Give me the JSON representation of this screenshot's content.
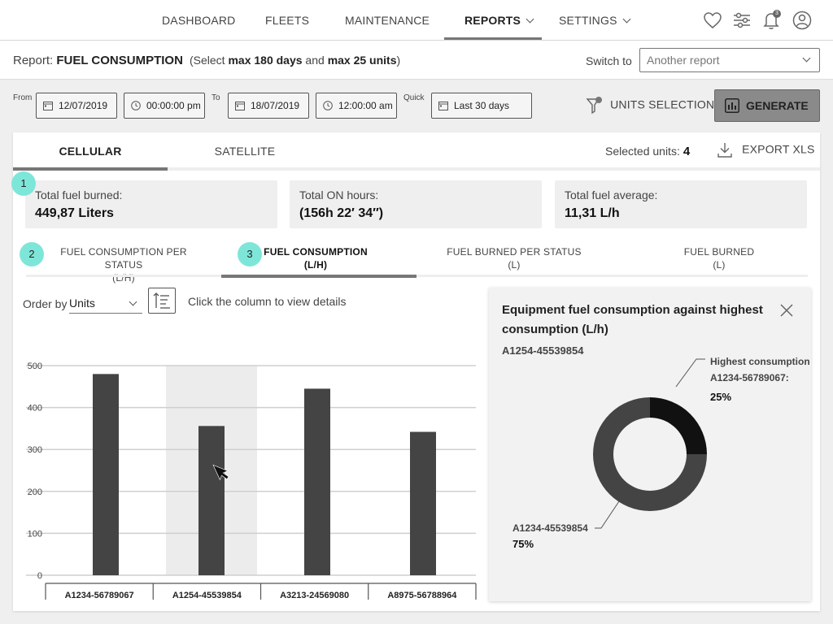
{
  "nav": {
    "items": [
      {
        "label": "DASHBOARD"
      },
      {
        "label": "FLEETS"
      },
      {
        "label": "MAINTENANCE"
      },
      {
        "label": "REPORTS"
      },
      {
        "label": "SETTINGS"
      }
    ],
    "active": "REPORTS",
    "notification_count": "3"
  },
  "report": {
    "prefix": "Report:",
    "name": "FUEL CONSUMPTION",
    "hint_open": "(Select ",
    "hint_days": "max 180 days",
    "hint_and": " and ",
    "hint_units": "max 25 units",
    "hint_close": ")",
    "switch_label": "Switch to",
    "switch_value": "Another report"
  },
  "filters": {
    "from_label": "From",
    "from_date": "12/07/2019",
    "from_time": "00:00:00 pm",
    "to_label": "To",
    "to_date": "18/07/2019",
    "to_time": "12:00:00 am",
    "quick_label": "Quick",
    "quick_value": "Last 30 days",
    "units_selection": "UNITS SELECTION",
    "generate": "GENERATE"
  },
  "tabs": {
    "items": [
      {
        "label": "CELLULAR"
      },
      {
        "label": "SATELLITE"
      }
    ],
    "active": "CELLULAR",
    "selected_units_label": "Selected units:",
    "selected_units_value": "4",
    "export": "EXPORT XLS"
  },
  "stats": [
    {
      "label": "Total fuel burned:",
      "value": "449,87 Liters"
    },
    {
      "label": "Total ON hours:",
      "value": "(156h 22′ 34″)"
    },
    {
      "label": "Total fuel average:",
      "value": "11,31 L/h"
    }
  ],
  "badges": [
    "1",
    "2",
    "3"
  ],
  "subtabs": [
    {
      "line1": "FUEL CONSUMPTION PER STATUS",
      "line2": "(L/H)"
    },
    {
      "line1": "FUEL CONSUMPTION",
      "line2": "(L/H)"
    },
    {
      "line1": "FUEL BURNED PER STATUS",
      "line2": "(L)"
    },
    {
      "line1": "FUEL BURNED",
      "line2": "(L)"
    }
  ],
  "controls": {
    "order_label": "Order by",
    "order_value": "Units",
    "click_hint": "Click the column to view details"
  },
  "chart_data": {
    "type": "bar",
    "categories": [
      "A1234-56789067",
      "A1254-45539854",
      "A3213-24569080",
      "A8975-56788964"
    ],
    "values": [
      480,
      356,
      445,
      342
    ],
    "ylim": [
      0,
      500
    ],
    "yticks": [
      0,
      100,
      200,
      300,
      400,
      500
    ],
    "highlighted": "A1254-45539854",
    "grid": true
  },
  "panel": {
    "title": "Equipment fuel consumption against highest consumption (L/h)",
    "unit": "A1254-45539854",
    "donut": {
      "type": "pie",
      "slices": [
        {
          "label": "A1234-45539854",
          "value": 75,
          "pct": "75%",
          "color": "#444444"
        },
        {
          "label_line1": "Highest consumption",
          "label_line2": "A1234-56789067:",
          "value": 25,
          "pct": "25%",
          "color": "#111111"
        }
      ]
    }
  },
  "colors": {
    "accent_badge": "#7ee6d9",
    "bar": "#444444",
    "highlight_column": "#ececec",
    "generate_button": "#8a8a8a"
  }
}
